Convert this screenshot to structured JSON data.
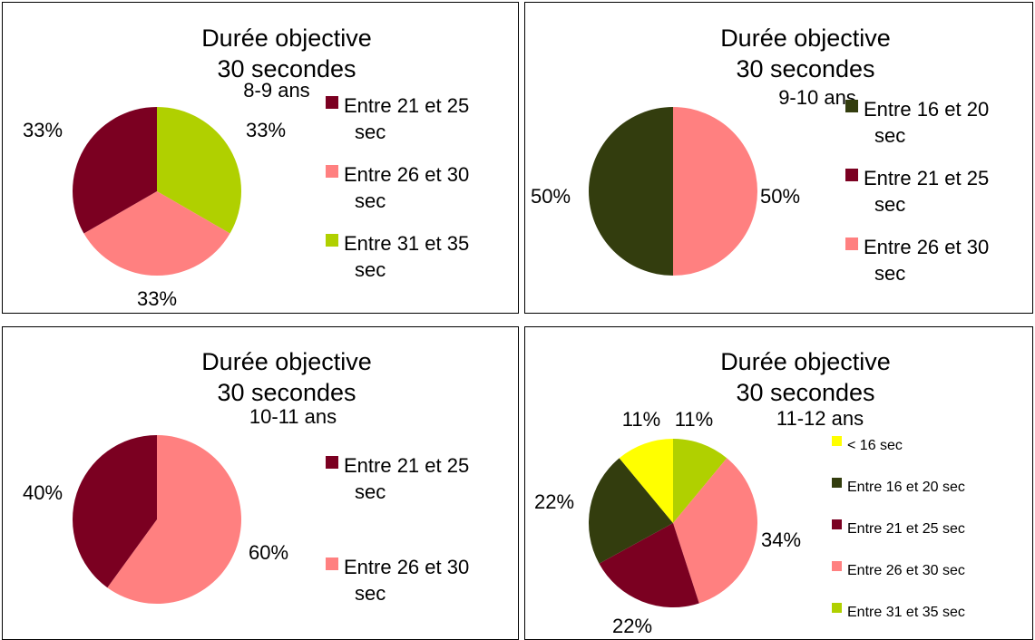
{
  "colors": {
    "lt16": "#ffff00",
    "c16_20": "#333d0e",
    "c21_25": "#7b0021",
    "c26_30": "#ff8080",
    "c31_35": "#b0d000"
  },
  "chart_data": [
    {
      "type": "pie",
      "title": "Durée objective",
      "title_line2": "30 secondes",
      "subtitle": "8-9 ans",
      "slices": [
        {
          "label": "Entre 31 et 35 sec",
          "legend_lines": [
            "Entre 31 et 35",
            "sec"
          ],
          "value": 33,
          "pct_label": "33%",
          "color": "#b0d000"
        },
        {
          "label": "Entre 26 et 30 sec",
          "legend_lines": [
            "Entre 26 et 30",
            "sec"
          ],
          "value": 33,
          "pct_label": "33%",
          "color": "#ff8080"
        },
        {
          "label": "Entre 21 et 25 sec",
          "legend_lines": [
            "Entre 21 et 25",
            "sec"
          ],
          "value": 33,
          "pct_label": "33%",
          "color": "#7b0021"
        }
      ],
      "legend_order": [
        2,
        1,
        0
      ]
    },
    {
      "type": "pie",
      "title": "Durée objective",
      "title_line2": "30 secondes",
      "subtitle": "9-10 ans",
      "slices": [
        {
          "label": "Entre 26 et 30 sec",
          "legend_lines": [
            "Entre 26 et 30",
            "sec"
          ],
          "value": 50,
          "pct_label": "50%",
          "color": "#ff8080"
        },
        {
          "label": "Entre 16 et 20 sec",
          "legend_lines": [
            "Entre 16 et 20",
            "sec"
          ],
          "value": 50,
          "pct_label": "50%",
          "color": "#333d0e"
        },
        {
          "label": "Entre 21 et 25 sec",
          "legend_lines": [
            "Entre 21 et 25",
            "sec"
          ],
          "value": 0,
          "pct_label": "",
          "color": "#7b0021"
        }
      ],
      "legend_order": [
        1,
        2,
        0
      ]
    },
    {
      "type": "pie",
      "title": "Durée objective",
      "title_line2": "30 secondes",
      "subtitle": "10-11 ans",
      "slices": [
        {
          "label": "Entre 26 et 30 sec",
          "legend_lines": [
            "Entre 26 et 30",
            "sec"
          ],
          "value": 60,
          "pct_label": "60%",
          "color": "#ff8080"
        },
        {
          "label": "Entre 21 et 25 sec",
          "legend_lines": [
            "Entre 21 et 25",
            "sec"
          ],
          "value": 40,
          "pct_label": "40%",
          "color": "#7b0021"
        }
      ],
      "legend_order": [
        1,
        0
      ]
    },
    {
      "type": "pie",
      "title": "Durée objective",
      "title_line2": "30 secondes",
      "subtitle": "11-12 ans",
      "slices": [
        {
          "label": "Entre 31 et 35 sec",
          "legend_lines": [
            "Entre 31 et 35 sec"
          ],
          "value": 11,
          "pct_label": "11%",
          "color": "#b0d000"
        },
        {
          "label": "Entre 26 et 30 sec",
          "legend_lines": [
            "Entre 26 et 30 sec"
          ],
          "value": 34,
          "pct_label": "34%",
          "color": "#ff8080"
        },
        {
          "label": "Entre 21 et 25 sec",
          "legend_lines": [
            "Entre 21 et 25 sec"
          ],
          "value": 22,
          "pct_label": "22%",
          "color": "#7b0021"
        },
        {
          "label": "Entre 16 et 20 sec",
          "legend_lines": [
            "Entre 16 et 20 sec"
          ],
          "value": 22,
          "pct_label": "22%",
          "color": "#333d0e"
        },
        {
          "label": "< 16 sec",
          "legend_lines": [
            "< 16 sec"
          ],
          "value": 11,
          "pct_label": "11%",
          "color": "#ffff00"
        }
      ],
      "legend_order": [
        4,
        3,
        2,
        1,
        0
      ]
    }
  ]
}
